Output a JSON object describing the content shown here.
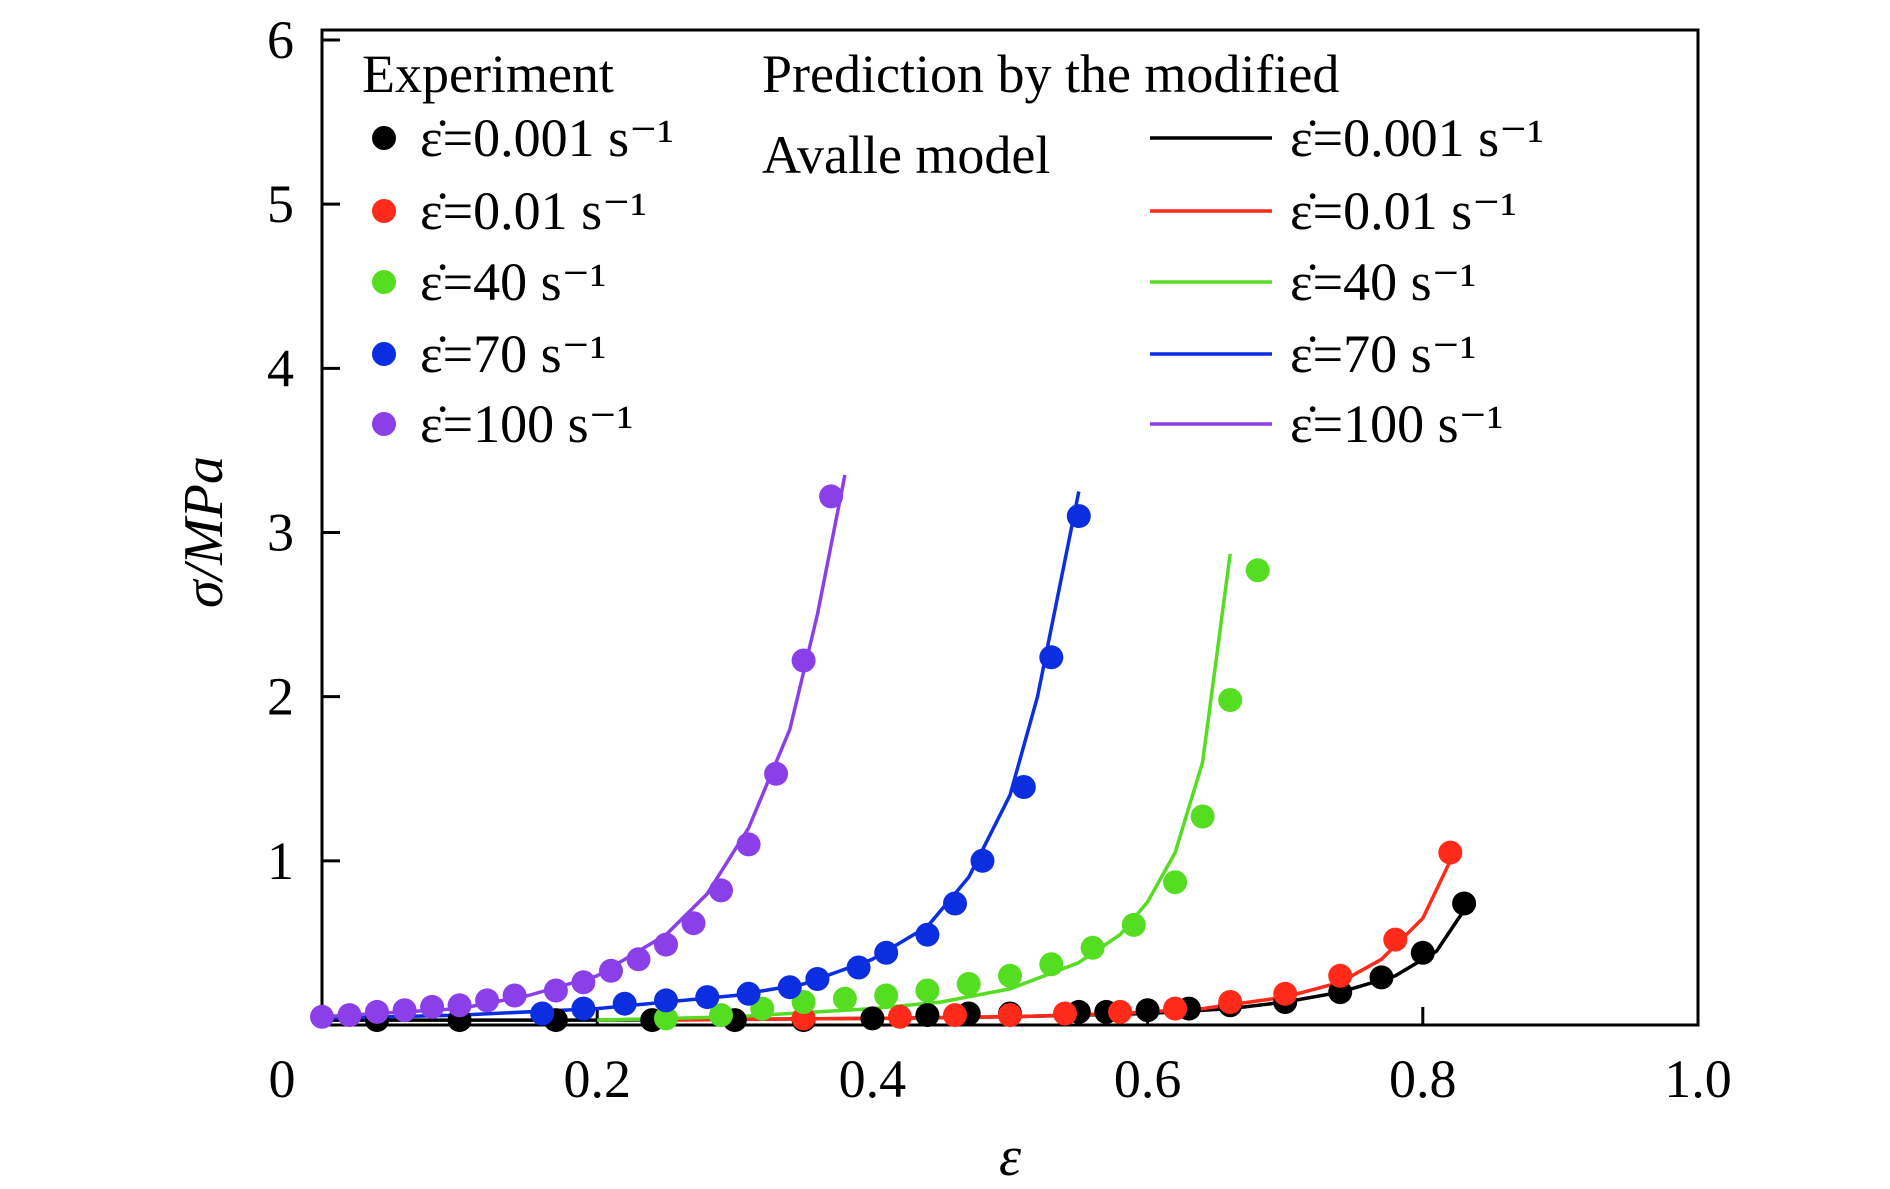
{
  "chart_data": {
    "type": "scatter",
    "xlabel": "ε",
    "ylabel": "σ/MPa",
    "xlim": [
      0,
      1.0
    ],
    "ylim": [
      0,
      6
    ],
    "x_ticks": [
      "0",
      "0.2",
      "0.4",
      "0.6",
      "0.8",
      "1.0"
    ],
    "y_ticks": [
      "1",
      "2",
      "3",
      "4",
      "5",
      "6"
    ],
    "grid": false,
    "legend": {
      "placement": "top",
      "experiment_title": "Experiment",
      "prediction_title_line1": "Prediction by the modified",
      "prediction_title_line2": "Avalle model"
    },
    "series": [
      {
        "name": "ε̇=0.001 s⁻¹",
        "color": "#000000",
        "experiment": [
          [
            0.04,
            0.03
          ],
          [
            0.1,
            0.03
          ],
          [
            0.17,
            0.03
          ],
          [
            0.24,
            0.03
          ],
          [
            0.3,
            0.03
          ],
          [
            0.35,
            0.03
          ],
          [
            0.4,
            0.04
          ],
          [
            0.44,
            0.06
          ],
          [
            0.47,
            0.07
          ],
          [
            0.5,
            0.07
          ],
          [
            0.55,
            0.08
          ],
          [
            0.57,
            0.08
          ],
          [
            0.6,
            0.09
          ],
          [
            0.63,
            0.1
          ],
          [
            0.66,
            0.12
          ],
          [
            0.7,
            0.14
          ],
          [
            0.74,
            0.2
          ],
          [
            0.77,
            0.29
          ],
          [
            0.8,
            0.44
          ],
          [
            0.83,
            0.74
          ]
        ],
        "prediction": [
          [
            0.0,
            0.03
          ],
          [
            0.2,
            0.03
          ],
          [
            0.4,
            0.04
          ],
          [
            0.5,
            0.05
          ],
          [
            0.6,
            0.07
          ],
          [
            0.66,
            0.1
          ],
          [
            0.7,
            0.14
          ],
          [
            0.74,
            0.2
          ],
          [
            0.78,
            0.3
          ],
          [
            0.81,
            0.45
          ],
          [
            0.83,
            0.7
          ]
        ]
      },
      {
        "name": "ε̇=0.01 s⁻¹",
        "color": "#ff2a1a",
        "experiment": [
          [
            0.35,
            0.04
          ],
          [
            0.42,
            0.05
          ],
          [
            0.46,
            0.06
          ],
          [
            0.5,
            0.06
          ],
          [
            0.54,
            0.07
          ],
          [
            0.58,
            0.08
          ],
          [
            0.62,
            0.1
          ],
          [
            0.66,
            0.14
          ],
          [
            0.7,
            0.19
          ],
          [
            0.74,
            0.3
          ],
          [
            0.78,
            0.52
          ],
          [
            0.82,
            1.05
          ]
        ],
        "prediction": [
          [
            0.25,
            0.03
          ],
          [
            0.4,
            0.04
          ],
          [
            0.5,
            0.05
          ],
          [
            0.58,
            0.07
          ],
          [
            0.64,
            0.1
          ],
          [
            0.7,
            0.17
          ],
          [
            0.74,
            0.26
          ],
          [
            0.77,
            0.4
          ],
          [
            0.8,
            0.65
          ],
          [
            0.82,
            1.0
          ]
        ]
      },
      {
        "name": "ε̇=40 s⁻¹",
        "color": "#55dd22",
        "experiment": [
          [
            0.25,
            0.04
          ],
          [
            0.29,
            0.06
          ],
          [
            0.32,
            0.1
          ],
          [
            0.35,
            0.14
          ],
          [
            0.38,
            0.16
          ],
          [
            0.41,
            0.18
          ],
          [
            0.44,
            0.21
          ],
          [
            0.47,
            0.25
          ],
          [
            0.5,
            0.3
          ],
          [
            0.53,
            0.37
          ],
          [
            0.56,
            0.47
          ],
          [
            0.59,
            0.61
          ],
          [
            0.62,
            0.87
          ],
          [
            0.64,
            1.27
          ],
          [
            0.66,
            1.98
          ],
          [
            0.68,
            2.77
          ]
        ],
        "prediction": [
          [
            0.2,
            0.03
          ],
          [
            0.3,
            0.05
          ],
          [
            0.4,
            0.1
          ],
          [
            0.45,
            0.14
          ],
          [
            0.5,
            0.22
          ],
          [
            0.55,
            0.38
          ],
          [
            0.58,
            0.55
          ],
          [
            0.6,
            0.75
          ],
          [
            0.62,
            1.05
          ],
          [
            0.64,
            1.6
          ],
          [
            0.66,
            2.87
          ]
        ]
      },
      {
        "name": "ε̇=70 s⁻¹",
        "color": "#0a2ee0",
        "experiment": [
          [
            0.16,
            0.07
          ],
          [
            0.19,
            0.1
          ],
          [
            0.22,
            0.13
          ],
          [
            0.25,
            0.15
          ],
          [
            0.28,
            0.17
          ],
          [
            0.31,
            0.19
          ],
          [
            0.34,
            0.23
          ],
          [
            0.36,
            0.28
          ],
          [
            0.39,
            0.35
          ],
          [
            0.41,
            0.44
          ],
          [
            0.44,
            0.55
          ],
          [
            0.46,
            0.74
          ],
          [
            0.48,
            1.0
          ],
          [
            0.51,
            1.45
          ],
          [
            0.53,
            2.24
          ],
          [
            0.55,
            3.1
          ]
        ],
        "prediction": [
          [
            0.0,
            0.04
          ],
          [
            0.1,
            0.06
          ],
          [
            0.2,
            0.1
          ],
          [
            0.3,
            0.18
          ],
          [
            0.35,
            0.25
          ],
          [
            0.4,
            0.4
          ],
          [
            0.44,
            0.6
          ],
          [
            0.47,
            0.9
          ],
          [
            0.5,
            1.4
          ],
          [
            0.52,
            2.0
          ],
          [
            0.55,
            3.25
          ]
        ]
      },
      {
        "name": "ε̇=100 s⁻¹",
        "color": "#8b3fe8",
        "experiment": [
          [
            0.0,
            0.05
          ],
          [
            0.02,
            0.06
          ],
          [
            0.04,
            0.08
          ],
          [
            0.06,
            0.09
          ],
          [
            0.08,
            0.11
          ],
          [
            0.1,
            0.12
          ],
          [
            0.12,
            0.15
          ],
          [
            0.14,
            0.18
          ],
          [
            0.17,
            0.21
          ],
          [
            0.19,
            0.26
          ],
          [
            0.21,
            0.33
          ],
          [
            0.23,
            0.4
          ],
          [
            0.25,
            0.49
          ],
          [
            0.27,
            0.62
          ],
          [
            0.29,
            0.82
          ],
          [
            0.31,
            1.1
          ],
          [
            0.33,
            1.53
          ],
          [
            0.35,
            2.22
          ],
          [
            0.37,
            3.22
          ]
        ],
        "prediction": [
          [
            0.0,
            0.05
          ],
          [
            0.1,
            0.1
          ],
          [
            0.15,
            0.18
          ],
          [
            0.2,
            0.3
          ],
          [
            0.25,
            0.55
          ],
          [
            0.28,
            0.8
          ],
          [
            0.31,
            1.2
          ],
          [
            0.34,
            1.8
          ],
          [
            0.36,
            2.5
          ],
          [
            0.38,
            3.35
          ]
        ]
      }
    ]
  }
}
